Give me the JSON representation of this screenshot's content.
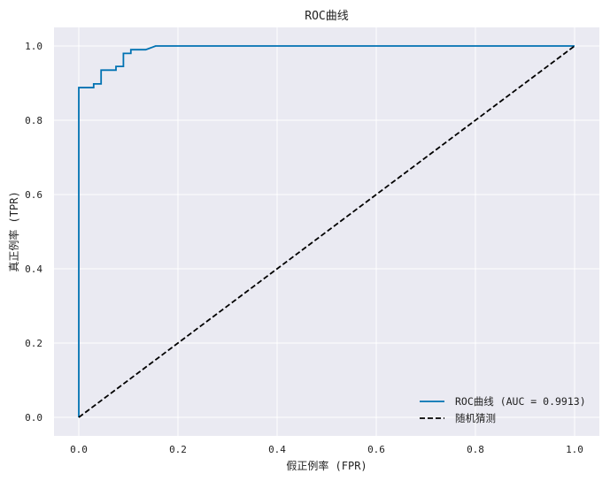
{
  "chart_data": {
    "type": "line",
    "title": "ROC曲线",
    "xlabel": "假正例率 (FPR)",
    "ylabel": "真正例率 (TPR)",
    "xlim": [
      -0.05,
      1.05
    ],
    "ylim": [
      -0.05,
      1.05
    ],
    "xticks": [
      "0.0",
      "0.2",
      "0.4",
      "0.6",
      "0.8",
      "1.0"
    ],
    "yticks": [
      "0.0",
      "0.2",
      "0.4",
      "0.6",
      "0.8",
      "1.0"
    ],
    "grid": true,
    "legend_position": "lower-right",
    "series": [
      {
        "name": "ROC曲线 (AUC = 0.9913)",
        "color": "#0072B2",
        "style": "solid",
        "x": [
          0.0,
          0.0,
          0.0,
          0.03,
          0.03,
          0.045,
          0.045,
          0.075,
          0.075,
          0.09,
          0.09,
          0.105,
          0.105,
          0.135,
          0.155,
          1.0
        ],
        "y": [
          0.0,
          0.0,
          0.888,
          0.888,
          0.898,
          0.898,
          0.935,
          0.935,
          0.945,
          0.945,
          0.98,
          0.98,
          0.99,
          0.99,
          1.0,
          1.0
        ]
      },
      {
        "name": "随机猜测",
        "color": "#000000",
        "style": "dashed",
        "x": [
          0.0,
          1.0
        ],
        "y": [
          0.0,
          1.0
        ]
      }
    ]
  },
  "colors": {
    "plot_background": "#EAEAF2",
    "grid": "#FFFFFF"
  }
}
